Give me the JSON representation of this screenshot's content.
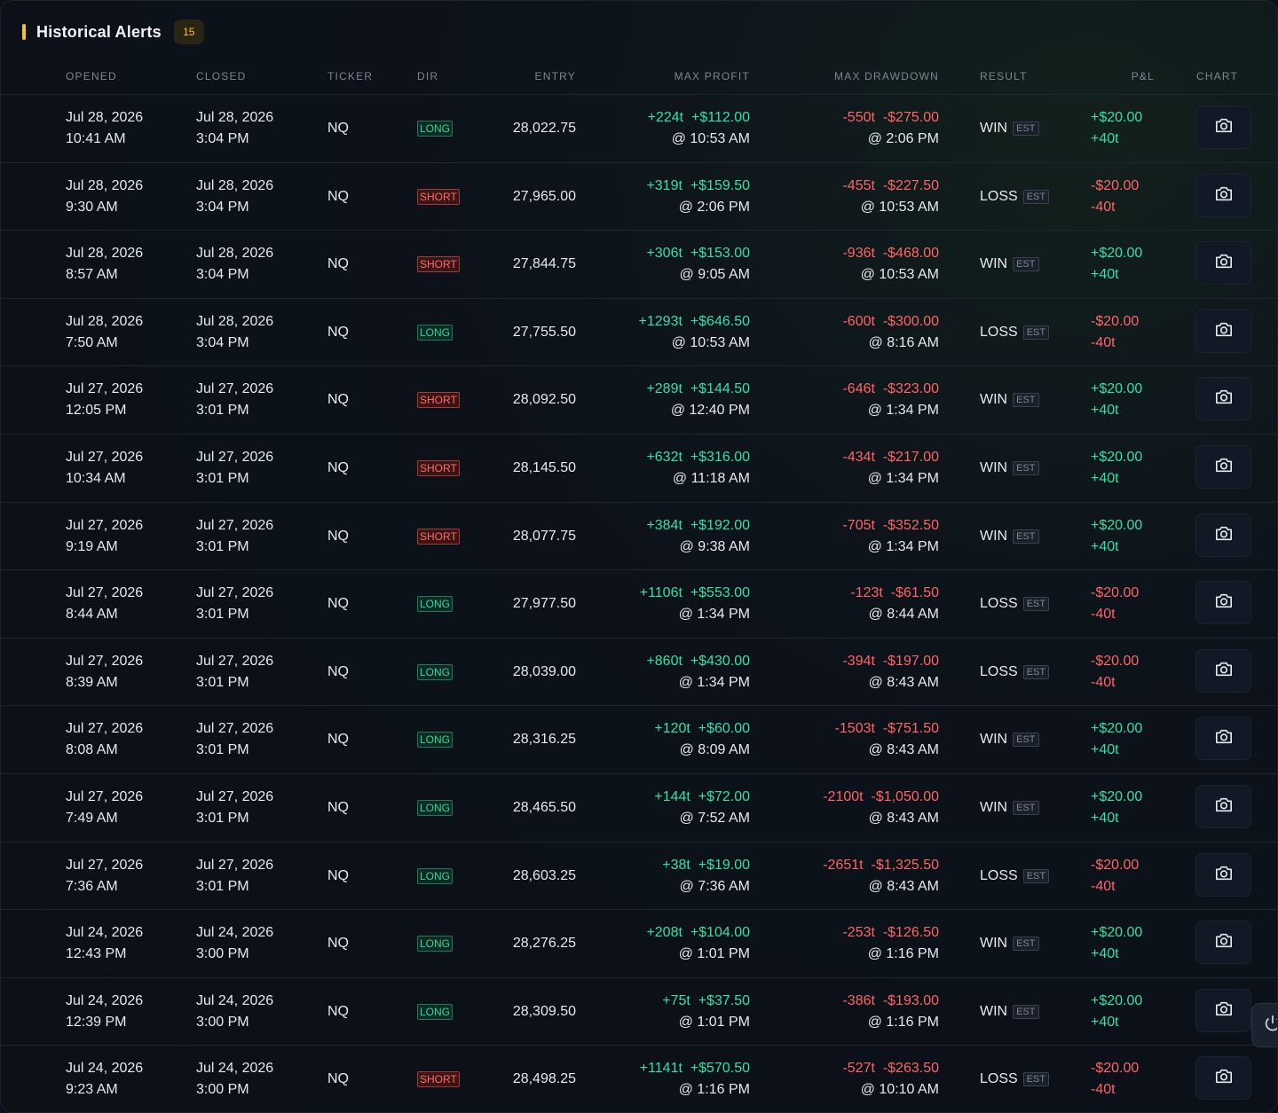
{
  "header": {
    "title": "Historical Alerts",
    "count": "15"
  },
  "columns": {
    "opened": "OPENED",
    "closed": "CLOSED",
    "ticker": "TICKER",
    "dir": "DIR",
    "entry": "ENTRY",
    "max_profit": "MAX PROFIT",
    "max_drawdown": "MAX DRAWDOWN",
    "result": "RESULT",
    "pnl": "P&L",
    "chart": "CHART"
  },
  "est_label": "EST",
  "colors": {
    "accent": "#f5c518",
    "positive": "#34e0a5",
    "negative": "#ff6464"
  },
  "icons": {
    "chart": "camera-icon",
    "side": "power-icon"
  },
  "rows": [
    {
      "opened_date": "Jul 28, 2026",
      "opened_time": "10:41 AM",
      "closed_date": "Jul 28, 2026",
      "closed_time": "3:04 PM",
      "ticker": "NQ",
      "dir": "LONG",
      "entry": "28,022.75",
      "mp_ticks": "+224t",
      "mp_usd": "+$112.00",
      "mp_time": "@ 10:53 AM",
      "md_ticks": "-550t",
      "md_usd": "-$275.00",
      "md_time": "@ 2:06 PM",
      "result": "WIN",
      "pnl_usd": "+$20.00",
      "pnl_ticks": "+40t"
    },
    {
      "opened_date": "Jul 28, 2026",
      "opened_time": "9:30 AM",
      "closed_date": "Jul 28, 2026",
      "closed_time": "3:04 PM",
      "ticker": "NQ",
      "dir": "SHORT",
      "entry": "27,965.00",
      "mp_ticks": "+319t",
      "mp_usd": "+$159.50",
      "mp_time": "@ 2:06 PM",
      "md_ticks": "-455t",
      "md_usd": "-$227.50",
      "md_time": "@ 10:53 AM",
      "result": "LOSS",
      "pnl_usd": "-$20.00",
      "pnl_ticks": "-40t"
    },
    {
      "opened_date": "Jul 28, 2026",
      "opened_time": "8:57 AM",
      "closed_date": "Jul 28, 2026",
      "closed_time": "3:04 PM",
      "ticker": "NQ",
      "dir": "SHORT",
      "entry": "27,844.75",
      "mp_ticks": "+306t",
      "mp_usd": "+$153.00",
      "mp_time": "@ 9:05 AM",
      "md_ticks": "-936t",
      "md_usd": "-$468.00",
      "md_time": "@ 10:53 AM",
      "result": "WIN",
      "pnl_usd": "+$20.00",
      "pnl_ticks": "+40t"
    },
    {
      "opened_date": "Jul 28, 2026",
      "opened_time": "7:50 AM",
      "closed_date": "Jul 28, 2026",
      "closed_time": "3:04 PM",
      "ticker": "NQ",
      "dir": "LONG",
      "entry": "27,755.50",
      "mp_ticks": "+1293t",
      "mp_usd": "+$646.50",
      "mp_time": "@ 10:53 AM",
      "md_ticks": "-600t",
      "md_usd": "-$300.00",
      "md_time": "@ 8:16 AM",
      "result": "LOSS",
      "pnl_usd": "-$20.00",
      "pnl_ticks": "-40t"
    },
    {
      "opened_date": "Jul 27, 2026",
      "opened_time": "12:05 PM",
      "closed_date": "Jul 27, 2026",
      "closed_time": "3:01 PM",
      "ticker": "NQ",
      "dir": "SHORT",
      "entry": "28,092.50",
      "mp_ticks": "+289t",
      "mp_usd": "+$144.50",
      "mp_time": "@ 12:40 PM",
      "md_ticks": "-646t",
      "md_usd": "-$323.00",
      "md_time": "@ 1:34 PM",
      "result": "WIN",
      "pnl_usd": "+$20.00",
      "pnl_ticks": "+40t"
    },
    {
      "opened_date": "Jul 27, 2026",
      "opened_time": "10:34 AM",
      "closed_date": "Jul 27, 2026",
      "closed_time": "3:01 PM",
      "ticker": "NQ",
      "dir": "SHORT",
      "entry": "28,145.50",
      "mp_ticks": "+632t",
      "mp_usd": "+$316.00",
      "mp_time": "@ 11:18 AM",
      "md_ticks": "-434t",
      "md_usd": "-$217.00",
      "md_time": "@ 1:34 PM",
      "result": "WIN",
      "pnl_usd": "+$20.00",
      "pnl_ticks": "+40t"
    },
    {
      "opened_date": "Jul 27, 2026",
      "opened_time": "9:19 AM",
      "closed_date": "Jul 27, 2026",
      "closed_time": "3:01 PM",
      "ticker": "NQ",
      "dir": "SHORT",
      "entry": "28,077.75",
      "mp_ticks": "+384t",
      "mp_usd": "+$192.00",
      "mp_time": "@ 9:38 AM",
      "md_ticks": "-705t",
      "md_usd": "-$352.50",
      "md_time": "@ 1:34 PM",
      "result": "WIN",
      "pnl_usd": "+$20.00",
      "pnl_ticks": "+40t"
    },
    {
      "opened_date": "Jul 27, 2026",
      "opened_time": "8:44 AM",
      "closed_date": "Jul 27, 2026",
      "closed_time": "3:01 PM",
      "ticker": "NQ",
      "dir": "LONG",
      "entry": "27,977.50",
      "mp_ticks": "+1106t",
      "mp_usd": "+$553.00",
      "mp_time": "@ 1:34 PM",
      "md_ticks": "-123t",
      "md_usd": "-$61.50",
      "md_time": "@ 8:44 AM",
      "result": "LOSS",
      "pnl_usd": "-$20.00",
      "pnl_ticks": "-40t"
    },
    {
      "opened_date": "Jul 27, 2026",
      "opened_time": "8:39 AM",
      "closed_date": "Jul 27, 2026",
      "closed_time": "3:01 PM",
      "ticker": "NQ",
      "dir": "LONG",
      "entry": "28,039.00",
      "mp_ticks": "+860t",
      "mp_usd": "+$430.00",
      "mp_time": "@ 1:34 PM",
      "md_ticks": "-394t",
      "md_usd": "-$197.00",
      "md_time": "@ 8:43 AM",
      "result": "LOSS",
      "pnl_usd": "-$20.00",
      "pnl_ticks": "-40t"
    },
    {
      "opened_date": "Jul 27, 2026",
      "opened_time": "8:08 AM",
      "closed_date": "Jul 27, 2026",
      "closed_time": "3:01 PM",
      "ticker": "NQ",
      "dir": "LONG",
      "entry": "28,316.25",
      "mp_ticks": "+120t",
      "mp_usd": "+$60.00",
      "mp_time": "@ 8:09 AM",
      "md_ticks": "-1503t",
      "md_usd": "-$751.50",
      "md_time": "@ 8:43 AM",
      "result": "WIN",
      "pnl_usd": "+$20.00",
      "pnl_ticks": "+40t"
    },
    {
      "opened_date": "Jul 27, 2026",
      "opened_time": "7:49 AM",
      "closed_date": "Jul 27, 2026",
      "closed_time": "3:01 PM",
      "ticker": "NQ",
      "dir": "LONG",
      "entry": "28,465.50",
      "mp_ticks": "+144t",
      "mp_usd": "+$72.00",
      "mp_time": "@ 7:52 AM",
      "md_ticks": "-2100t",
      "md_usd": "-$1,050.00",
      "md_time": "@ 8:43 AM",
      "result": "WIN",
      "pnl_usd": "+$20.00",
      "pnl_ticks": "+40t"
    },
    {
      "opened_date": "Jul 27, 2026",
      "opened_time": "7:36 AM",
      "closed_date": "Jul 27, 2026",
      "closed_time": "3:01 PM",
      "ticker": "NQ",
      "dir": "LONG",
      "entry": "28,603.25",
      "mp_ticks": "+38t",
      "mp_usd": "+$19.00",
      "mp_time": "@ 7:36 AM",
      "md_ticks": "-2651t",
      "md_usd": "-$1,325.50",
      "md_time": "@ 8:43 AM",
      "result": "LOSS",
      "pnl_usd": "-$20.00",
      "pnl_ticks": "-40t"
    },
    {
      "opened_date": "Jul 24, 2026",
      "opened_time": "12:43 PM",
      "closed_date": "Jul 24, 2026",
      "closed_time": "3:00 PM",
      "ticker": "NQ",
      "dir": "LONG",
      "entry": "28,276.25",
      "mp_ticks": "+208t",
      "mp_usd": "+$104.00",
      "mp_time": "@ 1:01 PM",
      "md_ticks": "-253t",
      "md_usd": "-$126.50",
      "md_time": "@ 1:16 PM",
      "result": "WIN",
      "pnl_usd": "+$20.00",
      "pnl_ticks": "+40t"
    },
    {
      "opened_date": "Jul 24, 2026",
      "opened_time": "12:39 PM",
      "closed_date": "Jul 24, 2026",
      "closed_time": "3:00 PM",
      "ticker": "NQ",
      "dir": "LONG",
      "entry": "28,309.50",
      "mp_ticks": "+75t",
      "mp_usd": "+$37.50",
      "mp_time": "@ 1:01 PM",
      "md_ticks": "-386t",
      "md_usd": "-$193.00",
      "md_time": "@ 1:16 PM",
      "result": "WIN",
      "pnl_usd": "+$20.00",
      "pnl_ticks": "+40t"
    },
    {
      "opened_date": "Jul 24, 2026",
      "opened_time": "9:23 AM",
      "closed_date": "Jul 24, 2026",
      "closed_time": "3:00 PM",
      "ticker": "NQ",
      "dir": "SHORT",
      "entry": "28,498.25",
      "mp_ticks": "+1141t",
      "mp_usd": "+$570.50",
      "mp_time": "@ 1:16 PM",
      "md_ticks": "-527t",
      "md_usd": "-$263.50",
      "md_time": "@ 10:10 AM",
      "result": "LOSS",
      "pnl_usd": "-$20.00",
      "pnl_ticks": "-40t"
    }
  ]
}
